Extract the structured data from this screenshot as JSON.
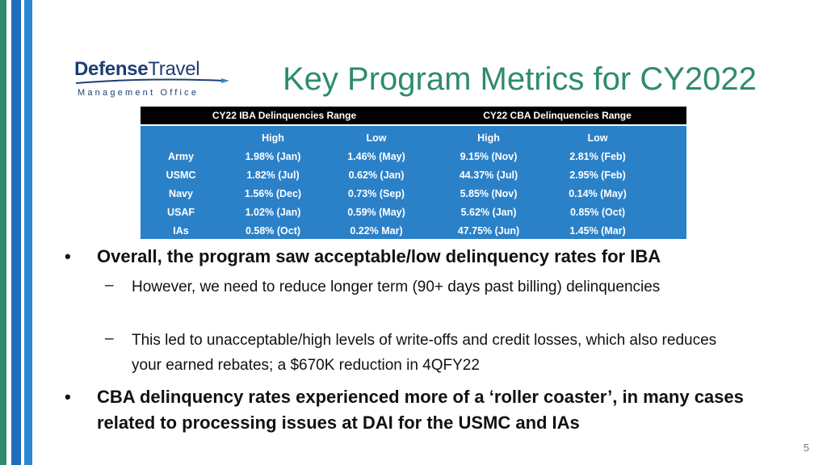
{
  "logo": {
    "word_bold": "Defense",
    "word_regular": "Travel",
    "subtitle": "Management Office"
  },
  "title": "Key Program Metrics for CY2022",
  "table": {
    "group_headers": [
      "CY22 IBA Delinquencies Range",
      "CY22 CBA Delinquencies Range"
    ],
    "column_headers": [
      "",
      "High",
      "Low",
      "High",
      "Low"
    ],
    "rows": [
      [
        "Army",
        "1.98% (Jan)",
        "1.46% (May)",
        "9.15% (Nov)",
        "2.81% (Feb)"
      ],
      [
        "USMC",
        "1.82% (Jul)",
        "0.62% (Jan)",
        "44.37% (Jul)",
        "2.95% (Feb)"
      ],
      [
        "Navy",
        "1.56% (Dec)",
        "0.73% (Sep)",
        "5.85% (Nov)",
        "0.14% (May)"
      ],
      [
        "USAF",
        "1.02% (Jan)",
        "0.59% (May)",
        "5.62% (Jan)",
        "0.85% (Oct)"
      ],
      [
        "IAs",
        "0.58% (Oct)",
        "0.22% Mar)",
        "47.75% (Jun)",
        "1.45% (Mar)"
      ]
    ]
  },
  "bullets": {
    "b1": "Overall, the program saw acceptable/low delinquency rates for IBA",
    "b1_sub1": "However, we need to reduce longer term (90+ days past billing) delinquencies",
    "b1_sub2": "This led to unacceptable/high levels of write-offs and credit losses, which also reduces your earned rebates; a $670K reduction in 4QFY22",
    "b2": "CBA delinquency rates experienced more of a ‘roller coaster’, in many cases related to processing issues at DAI for the USMC and IAs",
    "bullet_glyph": "•",
    "dash_glyph": "–"
  },
  "page_number": "5"
}
